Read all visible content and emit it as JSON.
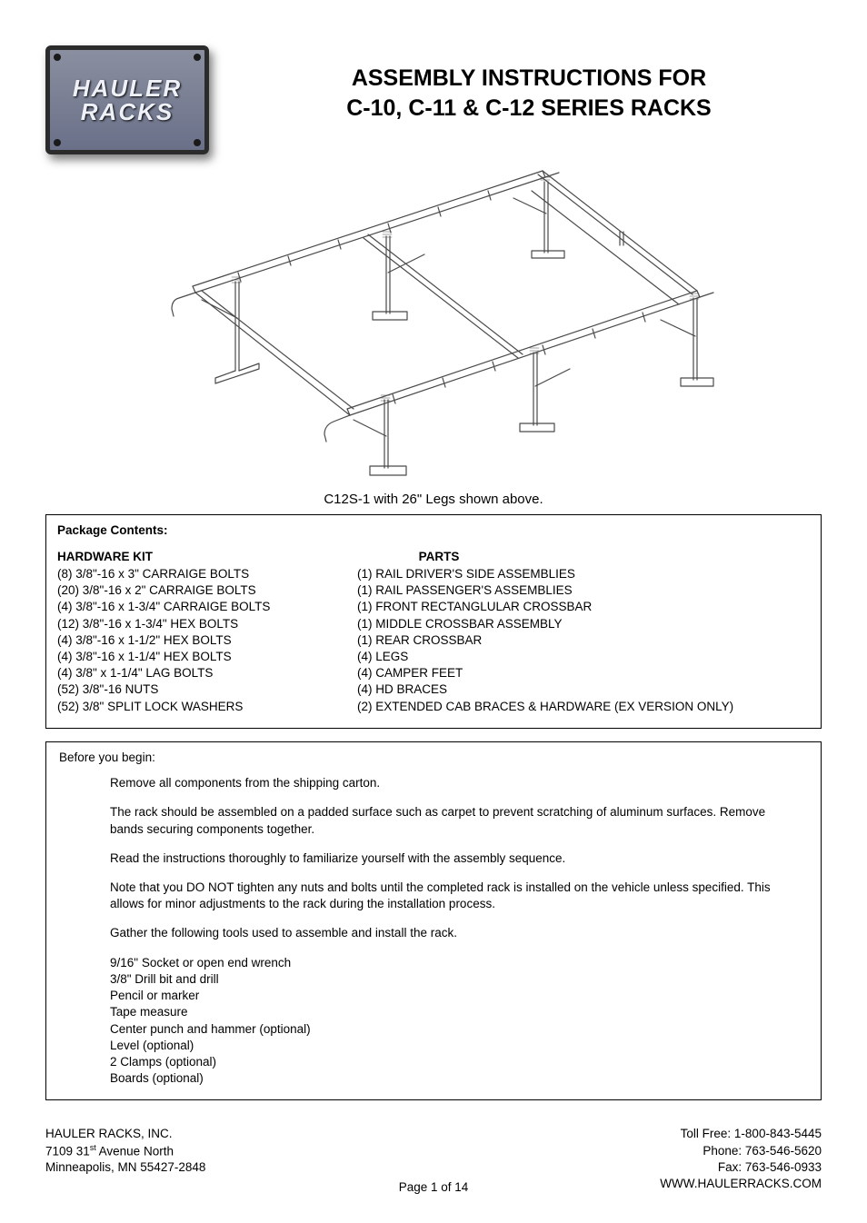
{
  "logo": {
    "line1": "HAULER",
    "line2": "RACKS"
  },
  "title": {
    "line1": "ASSEMBLY INSTRUCTIONS FOR",
    "line2": "C-10, C-11 & C-12 SERIES RACKS"
  },
  "figure_caption": "C12S-1 with 26\" Legs shown above.",
  "package": {
    "heading": "Package Contents:",
    "hardware_title": "HARDWARE KIT",
    "hardware": [
      "(8) 3/8\"-16 x 3\" CARRAIGE BOLTS",
      "(20) 3/8\"-16 x 2\" CARRAIGE BOLTS",
      "(4) 3/8\"-16 x 1-3/4\" CARRAIGE BOLTS",
      "(12) 3/8\"-16 x 1-3/4\" HEX BOLTS",
      "(4) 3/8\"-16 x 1-1/2\" HEX BOLTS",
      "(4) 3/8\"-16 x 1-1/4\" HEX BOLTS",
      "(4) 3/8\" x 1-1/4\" LAG BOLTS",
      "(52) 3/8\"-16 NUTS",
      "(52) 3/8\" SPLIT LOCK WASHERS"
    ],
    "parts_title": "PARTS",
    "parts": [
      "(1) RAIL DRIVER'S SIDE ASSEMBLIES",
      "(1) RAIL PASSENGER'S ASSEMBLIES",
      "(1) FRONT RECTANGLULAR CROSSBAR",
      "(1) MIDDLE CROSSBAR ASSEMBLY",
      "(1) REAR CROSSBAR",
      "(4) LEGS",
      "(4) CAMPER FEET",
      "(4) HD BRACES",
      "(2) EXTENDED CAB BRACES & HARDWARE (EX VERSION ONLY)"
    ]
  },
  "before_heading": "Before you begin:",
  "instructions": [
    "Remove all components from the shipping carton.",
    "The rack should be assembled on a padded surface such as carpet to prevent scratching of aluminum surfaces.  Remove bands securing components together.",
    "Read the instructions thoroughly to familiarize yourself with the assembly sequence.",
    "Note that you DO NOT tighten any nuts and bolts until the completed rack is installed on the vehicle unless specified.  This allows for minor adjustments to the rack during the installation process.",
    "Gather the following tools used to assemble and install the rack."
  ],
  "tools": [
    "9/16\" Socket or open end wrench",
    "3/8\" Drill bit and drill",
    "Pencil or marker",
    "Tape measure",
    "Center punch and hammer (optional)",
    "Level (optional)",
    "2 Clamps (optional)",
    "Boards (optional)"
  ],
  "footer": {
    "company": "HAULER RACKS, INC.",
    "addr_pre": "7109 31",
    "addr_sup": "st",
    "addr_post": " Avenue North",
    "citystate": "Minneapolis, MN 55427-2848",
    "tollfree": "Toll Free: 1-800-843-5445",
    "phone": "Phone: 763-546-5620",
    "fax": "Fax: 763-546-0933",
    "web": "WWW.HAULERRACKS.COM",
    "page": "Page 1 of 14"
  },
  "diagram_style": {
    "stroke": "#4a4a4a",
    "stroke_width": 1.2,
    "fill": "none"
  }
}
